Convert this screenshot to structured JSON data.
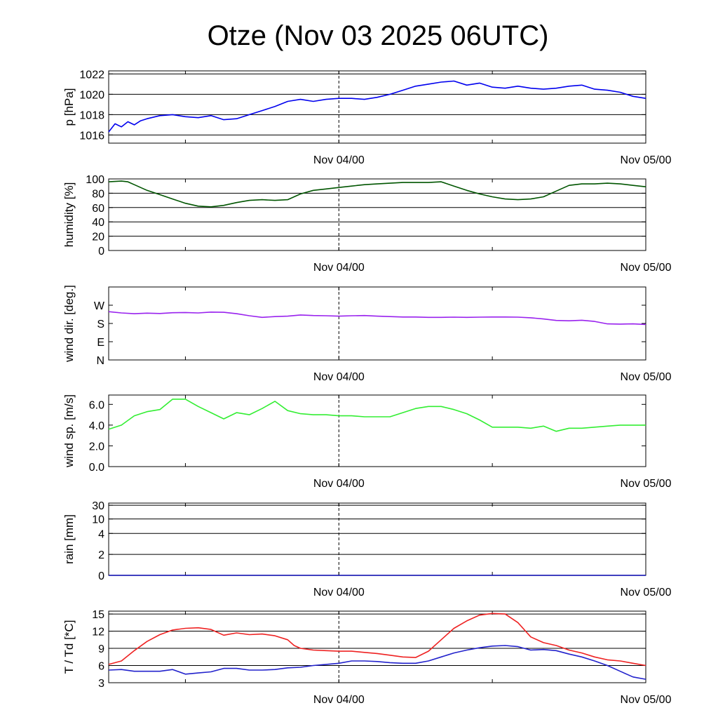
{
  "title": "Otze (Nov 03 2025 06UTC)",
  "x_tick_labels": [
    "Nov 04/00",
    "Nov 05/00"
  ],
  "colors": {
    "pressure": "#0000ee",
    "humidity": "#005500",
    "wind_dir": "#9922ee",
    "wind_speed": "#33ee33",
    "rain": "#0000aa",
    "temperature": "#ee2222",
    "dewpoint": "#2222cc"
  },
  "chart_data": [
    {
      "type": "line",
      "ylabel": "p [hPa]",
      "ylim": [
        1015.2,
        1022.3
      ],
      "yticks": [
        1016,
        1018,
        1020,
        1022
      ],
      "ytick_labels": [
        "1016",
        "1018",
        "1020",
        "1022"
      ],
      "gridlines": [
        1016,
        1018,
        1020,
        1022
      ],
      "grid": true,
      "series": [
        {
          "color_key": "pressure",
          "x": [
            0,
            0.5,
            1,
            1.5,
            2,
            2.5,
            3,
            4,
            5,
            6,
            7,
            8,
            9,
            10,
            11,
            12,
            13,
            14,
            15,
            16,
            17,
            18,
            19,
            20,
            21,
            22,
            23,
            24,
            25,
            26,
            27,
            28,
            29,
            30,
            31,
            32,
            33,
            34,
            35,
            36,
            37,
            38,
            39,
            40,
            41,
            42
          ],
          "y": [
            1016.3,
            1017.1,
            1016.8,
            1017.3,
            1017.0,
            1017.4,
            1017.6,
            1017.9,
            1018.0,
            1017.8,
            1017.7,
            1017.9,
            1017.5,
            1017.6,
            1018.0,
            1018.4,
            1018.8,
            1019.3,
            1019.5,
            1019.3,
            1019.5,
            1019.6,
            1019.6,
            1019.5,
            1019.7,
            1020.0,
            1020.4,
            1020.8,
            1021.0,
            1021.2,
            1021.3,
            1020.9,
            1021.1,
            1020.7,
            1020.6,
            1020.8,
            1020.6,
            1020.5,
            1020.6,
            1020.8,
            1020.9,
            1020.5,
            1020.4,
            1020.2,
            1019.8,
            1019.6
          ]
        }
      ]
    },
    {
      "type": "line",
      "ylabel": "humidity [%]",
      "ylim": [
        0,
        100
      ],
      "yticks": [
        0,
        20,
        40,
        60,
        80,
        100
      ],
      "ytick_labels": [
        "0",
        "20",
        "40",
        "60",
        "80",
        "100"
      ],
      "gridlines": [
        20,
        40,
        60,
        80,
        100
      ],
      "grid": true,
      "series": [
        {
          "color_key": "humidity",
          "x": [
            0,
            1,
            1.5,
            2,
            3,
            4,
            5,
            6,
            7,
            8,
            9,
            10,
            11,
            12,
            13,
            14,
            15,
            16,
            17,
            18,
            19,
            20,
            21,
            22,
            23,
            24,
            25,
            26,
            27,
            28,
            29,
            30,
            31,
            32,
            33,
            34,
            35,
            36,
            37,
            38,
            39,
            40,
            41,
            42
          ],
          "y": [
            96,
            97,
            96,
            92,
            84,
            78,
            72,
            66,
            62,
            61,
            63,
            67,
            70,
            71,
            70,
            71,
            79,
            84,
            86,
            88,
            90,
            92,
            93,
            94,
            95,
            95,
            95,
            96,
            90,
            84,
            79,
            75,
            72,
            71,
            72,
            75,
            83,
            91,
            93,
            93,
            94,
            93,
            91,
            89
          ]
        }
      ]
    },
    {
      "type": "line",
      "ylabel": "wind dir. [deg.]",
      "ylim": [
        0,
        360
      ],
      "yticks": [
        0,
        90,
        180,
        270
      ],
      "ytick_labels": [
        "N",
        "E",
        "S",
        "W"
      ],
      "gridlines": [],
      "grid": false,
      "series": [
        {
          "color_key": "wind_dir",
          "x": [
            0,
            1,
            2,
            3,
            4,
            5,
            6,
            7,
            8,
            9,
            10,
            11,
            12,
            13,
            14,
            15,
            16,
            17,
            18,
            19,
            20,
            21,
            22,
            23,
            24,
            25,
            26,
            27,
            28,
            29,
            30,
            31,
            32,
            33,
            34,
            35,
            36,
            37,
            38,
            39,
            40,
            41,
            42
          ],
          "y": [
            238,
            232,
            228,
            231,
            229,
            233,
            234,
            232,
            236,
            235,
            228,
            218,
            210,
            214,
            216,
            222,
            219,
            218,
            216,
            218,
            219,
            216,
            214,
            212,
            212,
            210,
            210,
            211,
            210,
            211,
            212,
            212,
            211,
            208,
            202,
            195,
            193,
            196,
            190,
            178,
            177,
            178,
            175
          ]
        }
      ]
    },
    {
      "type": "line",
      "ylabel": "wind sp. [m/s]",
      "ylim": [
        0,
        6.9
      ],
      "yticks": [
        0,
        2,
        4,
        6
      ],
      "ytick_labels": [
        "0.0",
        "2.0",
        "4.0",
        "6.0"
      ],
      "gridlines": [],
      "grid": false,
      "series": [
        {
          "color_key": "wind_speed",
          "x": [
            0,
            1,
            2,
            3,
            4,
            5,
            6,
            7,
            8,
            9,
            10,
            11,
            12,
            13,
            14,
            15,
            16,
            17,
            18,
            19,
            20,
            21,
            22,
            23,
            24,
            25,
            26,
            27,
            28,
            29,
            30,
            31,
            32,
            33,
            34,
            35,
            36,
            37,
            38,
            39,
            40,
            41,
            42
          ],
          "y": [
            3.6,
            4.0,
            4.9,
            5.3,
            5.5,
            6.5,
            6.5,
            5.8,
            5.2,
            4.6,
            5.2,
            5.0,
            5.6,
            6.3,
            5.4,
            5.1,
            5.0,
            5.0,
            4.9,
            4.9,
            4.8,
            4.8,
            4.8,
            5.2,
            5.6,
            5.8,
            5.8,
            5.5,
            5.1,
            4.5,
            3.8,
            3.8,
            3.8,
            3.7,
            3.9,
            3.4,
            3.7,
            3.7,
            3.8,
            3.9,
            4.0,
            4.0,
            4.0
          ]
        }
      ]
    },
    {
      "type": "line",
      "ylabel": "rain [mm]",
      "ylim": [
        0,
        30
      ],
      "scale": "nonlinear",
      "yticks": [
        0,
        2,
        4,
        10,
        30
      ],
      "ytick_labels": [
        "0",
        "2",
        "4",
        "10",
        "30"
      ],
      "gridlines": [
        2,
        4,
        10,
        30
      ],
      "grid": true,
      "series": [
        {
          "color_key": "rain",
          "x": [
            0,
            42
          ],
          "y": [
            0,
            0
          ]
        }
      ]
    },
    {
      "type": "line",
      "ylabel": "T / Td [*C]",
      "ylim": [
        3,
        15.5
      ],
      "yticks": [
        3,
        6,
        9,
        12,
        15
      ],
      "ytick_labels": [
        "3",
        "6",
        "9",
        "12",
        "15"
      ],
      "gridlines": [
        6,
        9,
        12,
        15
      ],
      "grid": true,
      "series": [
        {
          "color_key": "temperature",
          "x": [
            0,
            1,
            2,
            3,
            4,
            5,
            6,
            7,
            8,
            9,
            10,
            11,
            12,
            13,
            14,
            14.5,
            15,
            16,
            17,
            18,
            19,
            20,
            21,
            22,
            23,
            24,
            25,
            26,
            27,
            28,
            29,
            30,
            31,
            32,
            33,
            34,
            35,
            36,
            37,
            38,
            39,
            40,
            41,
            42
          ],
          "y": [
            6.2,
            6.8,
            8.6,
            10.2,
            11.4,
            12.2,
            12.5,
            12.6,
            12.3,
            11.3,
            11.7,
            11.4,
            11.5,
            11.2,
            10.5,
            9.5,
            9.0,
            8.7,
            8.6,
            8.5,
            8.5,
            8.3,
            8.1,
            7.8,
            7.5,
            7.4,
            8.5,
            10.5,
            12.5,
            13.8,
            14.8,
            15.1,
            15.0,
            13.5,
            11.0,
            10.0,
            9.5,
            8.7,
            8.2,
            7.5,
            7.0,
            6.8,
            6.4,
            6.0
          ]
        },
        {
          "color_key": "dewpoint",
          "x": [
            0,
            1,
            2,
            3,
            4,
            5,
            6,
            7,
            8,
            9,
            10,
            11,
            12,
            13,
            14,
            15,
            16,
            17,
            18,
            19,
            20,
            21,
            22,
            23,
            24,
            25,
            26,
            27,
            28,
            29,
            30,
            31,
            32,
            33,
            34,
            35,
            36,
            37,
            38,
            39,
            40,
            41,
            42
          ],
          "y": [
            5.2,
            5.3,
            5.0,
            5.0,
            5.0,
            5.3,
            4.5,
            4.7,
            4.9,
            5.5,
            5.5,
            5.2,
            5.2,
            5.3,
            5.6,
            5.7,
            6.0,
            6.2,
            6.4,
            6.8,
            6.8,
            6.7,
            6.5,
            6.4,
            6.4,
            6.8,
            7.5,
            8.2,
            8.7,
            9.1,
            9.4,
            9.5,
            9.3,
            8.7,
            8.8,
            8.6,
            8.0,
            7.5,
            6.8,
            6.0,
            5.0,
            4.0,
            3.6
          ]
        }
      ]
    }
  ]
}
